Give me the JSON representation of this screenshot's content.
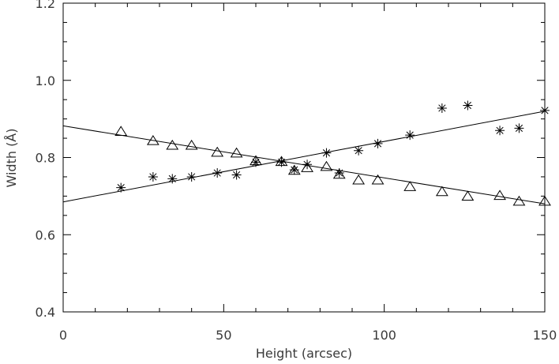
{
  "chart_data": {
    "type": "scatter",
    "title": "",
    "xlabel": "Height (arcsec)",
    "ylabel": "Width (Å)",
    "xlim": [
      0,
      150
    ],
    "ylim": [
      0.4,
      1.2
    ],
    "x_ticks": [
      0,
      50,
      100,
      150
    ],
    "x_tick_labels": [
      "0",
      "50",
      "100",
      "150"
    ],
    "y_ticks": [
      0.4,
      0.6,
      0.8,
      1.0,
      1.2
    ],
    "y_tick_labels": [
      "0.4",
      "0.6",
      "0.8",
      "1.0",
      "1.2"
    ],
    "grid": false,
    "legend": "none",
    "color": "#000000",
    "series": [
      {
        "marker": "triangle",
        "points": [
          [
            18,
            0.866
          ],
          [
            28,
            0.842
          ],
          [
            34,
            0.83
          ],
          [
            40,
            0.83
          ],
          [
            48,
            0.812
          ],
          [
            54,
            0.81
          ],
          [
            60,
            0.79
          ],
          [
            68,
            0.788
          ],
          [
            72,
            0.765
          ],
          [
            76,
            0.772
          ],
          [
            82,
            0.775
          ],
          [
            86,
            0.755
          ],
          [
            92,
            0.74
          ],
          [
            98,
            0.74
          ],
          [
            108,
            0.723
          ],
          [
            118,
            0.71
          ],
          [
            126,
            0.698
          ],
          [
            136,
            0.7
          ],
          [
            142,
            0.685
          ],
          [
            150,
            0.685
          ]
        ],
        "fit": {
          "x": [
            0,
            150
          ],
          "y": [
            0.882,
            0.68
          ]
        }
      },
      {
        "marker": "asterisk",
        "points": [
          [
            18,
            0.722
          ],
          [
            28,
            0.75
          ],
          [
            34,
            0.745
          ],
          [
            40,
            0.75
          ],
          [
            48,
            0.76
          ],
          [
            54,
            0.755
          ],
          [
            60,
            0.788
          ],
          [
            68,
            0.788
          ],
          [
            72,
            0.768
          ],
          [
            76,
            0.782
          ],
          [
            82,
            0.812
          ],
          [
            86,
            0.76
          ],
          [
            92,
            0.818
          ],
          [
            98,
            0.836
          ],
          [
            108,
            0.858
          ],
          [
            118,
            0.928
          ],
          [
            126,
            0.935
          ],
          [
            136,
            0.87
          ],
          [
            142,
            0.876
          ],
          [
            150,
            0.922
          ]
        ],
        "fit": {
          "x": [
            0,
            150
          ],
          "y": [
            0.685,
            0.92
          ]
        }
      }
    ]
  }
}
